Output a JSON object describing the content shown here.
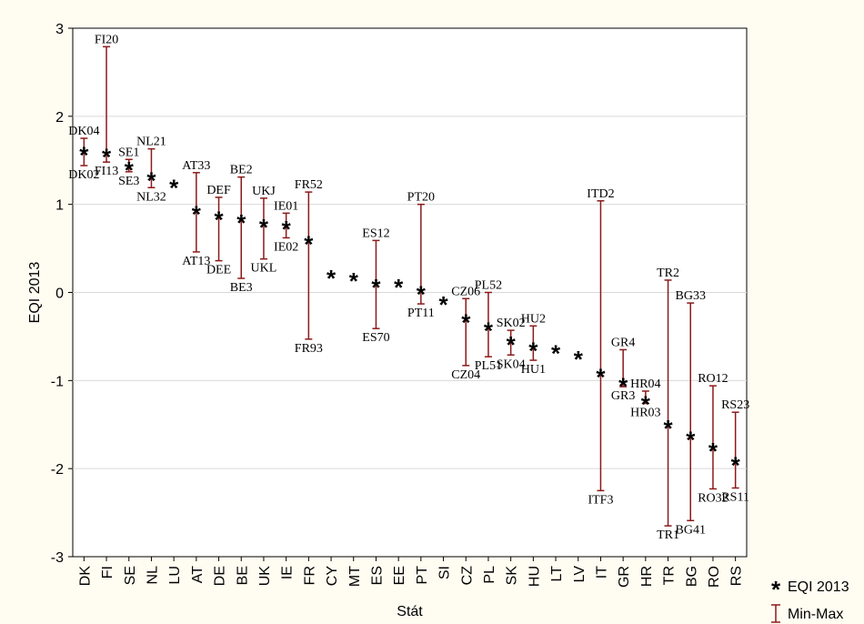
{
  "chart_data": {
    "type": "scatter",
    "title": "",
    "xlabel": "Stát",
    "ylabel": "EQI 2013",
    "ylim": [
      -3,
      3
    ],
    "yticks": [
      "3",
      "2",
      "1",
      "0",
      "-1",
      "-2",
      "-3"
    ],
    "grid": true,
    "legend_position": "bottom-right outside",
    "colors": {
      "whisker": "#8b1a1a",
      "marker": "#000000",
      "grid": "#d9d9d9",
      "plot_bg": "#ffffff",
      "outer_bg": "#fffdf2"
    },
    "categories": [
      "DK",
      "FI",
      "SE",
      "NL",
      "LU",
      "AT",
      "DE",
      "BE",
      "UK",
      "IE",
      "FR",
      "CY",
      "MT",
      "ES",
      "EE",
      "PT",
      "SI",
      "CZ",
      "PL",
      "SK",
      "HU",
      "LT",
      "LV",
      "IT",
      "GR",
      "HR",
      "TR",
      "BG",
      "RO",
      "RS"
    ],
    "series": [
      {
        "name": "EQI 2013",
        "values": [
          1.6,
          1.58,
          1.43,
          1.31,
          1.23,
          0.93,
          0.87,
          0.83,
          0.78,
          0.76,
          0.59,
          0.2,
          0.17,
          0.1,
          0.1,
          0.02,
          -0.1,
          -0.3,
          -0.39,
          -0.55,
          -0.62,
          -0.65,
          -0.72,
          -0.92,
          -1.02,
          -1.23,
          -1.5,
          -1.63,
          -1.76,
          -1.92
        ]
      },
      {
        "name": "Min-Max",
        "min": [
          1.44,
          1.48,
          1.37,
          1.19,
          null,
          0.46,
          0.36,
          0.16,
          0.38,
          0.62,
          -0.53,
          null,
          null,
          -0.41,
          null,
          -0.13,
          null,
          -0.83,
          -0.73,
          -0.71,
          -0.77,
          null,
          null,
          -2.25,
          -1.07,
          -1.26,
          -2.65,
          -2.59,
          -2.23,
          -2.22
        ],
        "max": [
          1.75,
          2.79,
          1.51,
          1.63,
          null,
          1.36,
          1.08,
          1.31,
          1.07,
          0.9,
          1.14,
          null,
          null,
          0.59,
          null,
          1.0,
          null,
          -0.07,
          0.0,
          -0.43,
          -0.38,
          null,
          null,
          1.04,
          -0.65,
          -1.12,
          0.14,
          -0.12,
          -1.06,
          -1.36
        ]
      }
    ],
    "labels_top": [
      "DK04",
      "FI20",
      "SE1",
      "NL21",
      "",
      "AT33",
      "DEF",
      "BE2",
      "UKJ",
      "IE01",
      "FR52",
      "",
      "",
      "ES12",
      "",
      "PT20",
      "",
      "CZ06",
      "PL52",
      "SK02",
      "HU2",
      "",
      "",
      "ITD2",
      "GR4",
      "HR04",
      "TR2",
      "BG33",
      "RO12",
      "RS23"
    ],
    "labels_bottom": [
      "DK02",
      "FI13",
      "SE3",
      "NL32",
      "",
      "AT13",
      "DEE",
      "BE3",
      "UKL",
      "IE02",
      "FR93",
      "",
      "",
      "ES70",
      "",
      "PT11",
      "",
      "CZ04",
      "PL51",
      "SK04",
      "HU1",
      "",
      "",
      "ITF3",
      "GR3",
      "HR03",
      "TR1",
      "BG41",
      "RO32",
      "RS11"
    ],
    "legend": [
      {
        "symbol": "*",
        "label": "EQI 2013"
      },
      {
        "symbol": "whisker",
        "label": "Min-Max"
      }
    ]
  }
}
